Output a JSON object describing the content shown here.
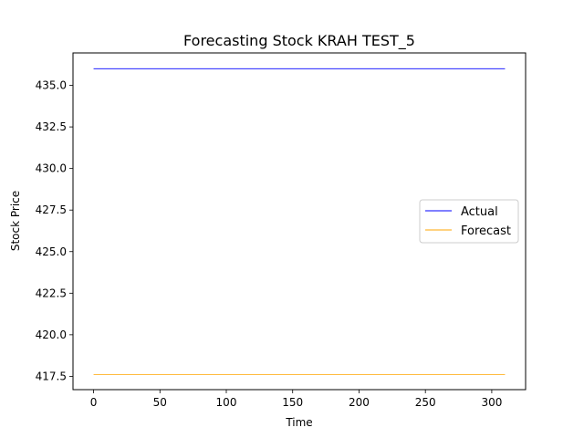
{
  "chart_data": {
    "type": "line",
    "title": "Forecasting Stock KRAH TEST_5",
    "xlabel": "Time",
    "ylabel": "Stock Price",
    "xlim": [
      -15.5,
      325.5
    ],
    "ylim": [
      416.7,
      436.95
    ],
    "xticks": [
      0,
      50,
      100,
      150,
      200,
      250,
      300
    ],
    "xtick_labels": [
      "0",
      "50",
      "100",
      "150",
      "200",
      "250",
      "300"
    ],
    "yticks": [
      417.5,
      420.0,
      422.5,
      425.0,
      427.5,
      430.0,
      432.5,
      435.0
    ],
    "ytick_labels": [
      "417.5",
      "420.0",
      "422.5",
      "425.0",
      "427.5",
      "430.0",
      "432.5",
      "435.0"
    ],
    "grid": false,
    "legend_position": "center-right",
    "series": [
      {
        "name": "Actual",
        "color": "#0000ff",
        "x": [
          0,
          310
        ],
        "y": [
          436.0,
          436.0
        ]
      },
      {
        "name": "Forecast",
        "color": "#ffa500",
        "x": [
          0,
          310
        ],
        "y": [
          417.6,
          417.6
        ]
      }
    ]
  }
}
